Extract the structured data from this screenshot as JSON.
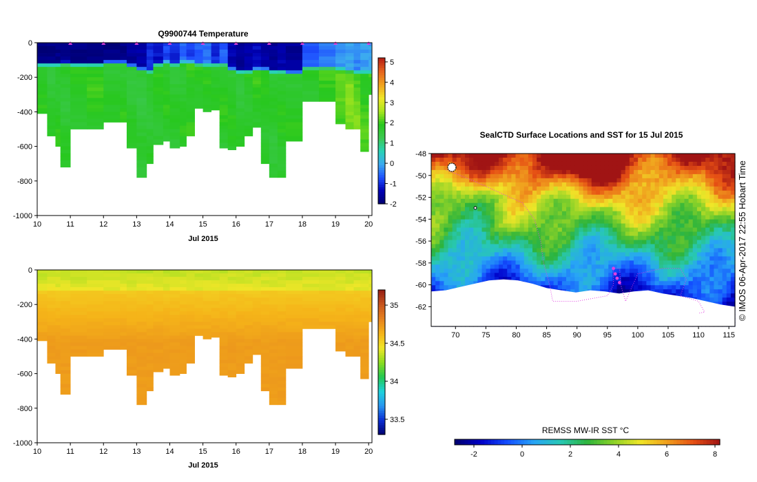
{
  "colors": {
    "tempScale": [
      "#00006e",
      "#0000b4",
      "#1e50ff",
      "#3caaf0",
      "#28d2b4",
      "#3cc850",
      "#28c81e",
      "#aae61e",
      "#f0e628",
      "#f0a01e",
      "#e6641e",
      "#b41e14"
    ],
    "salScale": [
      "#00006e",
      "#0a2dd2",
      "#2896f0",
      "#1ed2dc",
      "#23c850",
      "#8cdc1e",
      "#f0e628",
      "#f5b419",
      "#e6821e",
      "#c8561e",
      "#961e14"
    ],
    "sstScale": [
      "#00006e",
      "#0000c8",
      "#1450ff",
      "#28a5f5",
      "#28c8b4",
      "#2db43c",
      "#8cd228",
      "#f0e628",
      "#f0a01e",
      "#e65014",
      "#a01414"
    ],
    "track": "#e040e0",
    "frame": "#000000"
  },
  "chart_data": [
    {
      "type": "heatmap",
      "name": "temperature-section",
      "title": "Q9900744  Temperature",
      "xlabel": "Jul 2015",
      "ylabel": "",
      "xlim": [
        10,
        20.1
      ],
      "ylim": [
        -1000,
        0
      ],
      "xticks": [
        "10",
        "11",
        "12",
        "13",
        "14",
        "15",
        "16",
        "17",
        "18",
        "19",
        "20"
      ],
      "yticks": [
        "0",
        "-200",
        "-400",
        "-600",
        "-800",
        "-1000"
      ],
      "colorbar": {
        "min": -2,
        "max": 5.2,
        "ticks": [
          "5",
          "4",
          "3",
          "2",
          "1",
          "0",
          "-1",
          "-2"
        ]
      },
      "profile_times": [
        10.0,
        10.3,
        10.55,
        10.7,
        11.0,
        11.5,
        12.0,
        12.5,
        12.7,
        13.0,
        13.3,
        13.5,
        13.8,
        14.0,
        14.3,
        14.5,
        14.75,
        15.0,
        15.25,
        15.5,
        15.75,
        16.0,
        16.25,
        16.5,
        16.75,
        17.0,
        17.25,
        17.5,
        18.0,
        18.5,
        19.0,
        19.3,
        19.55,
        19.75,
        20.0
      ],
      "profile_max_depth": [
        -410,
        -540,
        -600,
        -720,
        -500,
        -500,
        -460,
        -460,
        -610,
        -780,
        -700,
        -590,
        -570,
        -610,
        -600,
        -540,
        -380,
        -400,
        -390,
        -610,
        -620,
        -600,
        -540,
        -490,
        -700,
        -780,
        -780,
        -570,
        -340,
        -340,
        -470,
        -500,
        -500,
        -630,
        -300
      ],
      "surface_temp": [
        -1.8,
        -1.8,
        -1.8,
        -1.8,
        -1.8,
        -1.8,
        -1.8,
        -1.8,
        -1.6,
        -1.5,
        -1.0,
        -1.2,
        -0.8,
        -1.0,
        -0.5,
        -0.8,
        -0.6,
        -0.4,
        -1.0,
        -0.6,
        -1.4,
        -1.6,
        -1.4,
        -1.3,
        -1.5,
        -1.6,
        -1.4,
        -1.6,
        -0.6,
        -0.4,
        -0.2,
        -0.1,
        -0.3,
        -0.1,
        -0.1
      ],
      "deep_temp": [
        1.8,
        1.7,
        1.8,
        1.7,
        1.8,
        1.9,
        1.7,
        1.8,
        1.7,
        1.6,
        1.7,
        1.8,
        1.8,
        1.7,
        1.8,
        1.9,
        1.8,
        1.8,
        1.7,
        1.8,
        1.8,
        1.7,
        1.8,
        1.9,
        1.8,
        1.7,
        1.8,
        1.8,
        1.8,
        1.9,
        2.1,
        2.3,
        2.2,
        2.0,
        2.0
      ],
      "thermocline_depth": [
        -110,
        -110,
        -110,
        -105,
        -110,
        -110,
        -100,
        -100,
        -120,
        -140,
        -150,
        -110,
        -100,
        -110,
        -100,
        -100,
        -110,
        -115,
        -110,
        -110,
        -140,
        -150,
        -150,
        -140,
        -140,
        -150,
        -150,
        -160,
        -130,
        -130,
        -140,
        -150,
        -160,
        -160,
        -160
      ],
      "surface_markers": [
        11,
        12,
        13,
        14,
        15,
        16,
        17,
        18,
        19,
        20
      ]
    },
    {
      "type": "heatmap",
      "name": "salinity-section",
      "title": "",
      "xlabel": "Jul 2015",
      "ylabel": "",
      "xlim": [
        10,
        20.1
      ],
      "ylim": [
        -1000,
        0
      ],
      "xticks": [
        "10",
        "11",
        "12",
        "13",
        "14",
        "15",
        "16",
        "17",
        "18",
        "19",
        "20"
      ],
      "yticks": [
        "0",
        "-200",
        "-400",
        "-600",
        "-800",
        "-1000"
      ],
      "colorbar": {
        "min": 33.3,
        "max": 35.2,
        "ticks": [
          "35",
          "34.5",
          "34",
          "33.5"
        ]
      },
      "surface_sal": 34.35,
      "deep_sal": 34.72,
      "halocline_depth": -120
    },
    {
      "type": "heatmap",
      "name": "sst-map",
      "title": "SealCTD Surface Locations and SST for 15 Jul 2015",
      "xlabel": "",
      "ylabel": "",
      "xlim": [
        66,
        116
      ],
      "ylim": [
        -63.8,
        -48
      ],
      "xticks": [
        "70",
        "75",
        "80",
        "85",
        "90",
        "95",
        "100",
        "105",
        "110",
        "115"
      ],
      "yticks": [
        "-48",
        "-50",
        "-52",
        "-54",
        "-56",
        "-58",
        "-60",
        "-62"
      ],
      "colorbar": {
        "label": "REMSS MW-IR SST °C",
        "min": -2.8,
        "max": 8.2,
        "ticks": [
          "-2",
          "0",
          "2",
          "4",
          "6",
          "8"
        ]
      },
      "antarctic_coast_lat": [
        -60.6,
        -60.5,
        -60.2,
        -59.9,
        -59.6,
        -59.5,
        -59.6,
        -59.9,
        -60.3,
        -60.5,
        -60.7,
        -60.5,
        -60.6,
        -60.8,
        -60.6,
        -60.5,
        -60.8,
        -61.0,
        -61.2,
        -61.5,
        -61.8,
        -62.0
      ],
      "track": [
        [
          68.5,
          -49.5
        ],
        [
          73,
          -50.5
        ],
        [
          77,
          -51.5
        ],
        [
          81,
          -52.5
        ],
        [
          83,
          -54
        ],
        [
          84,
          -56
        ],
        [
          84.5,
          -58
        ],
        [
          85.5,
          -60
        ],
        [
          86,
          -61.5
        ],
        [
          90,
          -61.5
        ],
        [
          95,
          -61
        ],
        [
          96,
          -60
        ],
        [
          96,
          -58.5
        ],
        [
          97,
          -58.5
        ],
        [
          97.2,
          -60
        ],
        [
          98,
          -61.5
        ],
        [
          100,
          -59
        ],
        [
          104,
          -58.5
        ],
        [
          107,
          -58.5
        ],
        [
          108,
          -59.5
        ],
        [
          107,
          -61
        ],
        [
          110,
          -61.5
        ],
        [
          111,
          -62.5
        ],
        [
          110,
          -62.6
        ]
      ]
    }
  ],
  "watermark": "© IMOS 06-Apr-2017 22:55 Hobart Time"
}
